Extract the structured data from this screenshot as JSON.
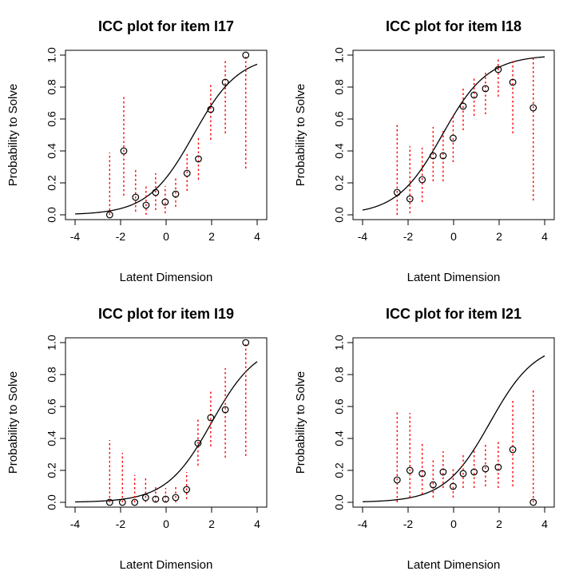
{
  "chart_data": [
    {
      "type": "scatter",
      "title": "ICC plot for item  I17",
      "xlabel": "Latent Dimension",
      "ylabel": "Probability to Solve",
      "xlim": [
        -4,
        4
      ],
      "ylim": [
        0,
        1
      ],
      "xticks": [
        "-4",
        "-2",
        "0",
        "2",
        "4"
      ],
      "yticks": [
        "0.0",
        "0.2",
        "0.4",
        "0.6",
        "0.8",
        "1.0"
      ],
      "curve": {
        "difficulty": 1.2,
        "range": [
          -4,
          4
        ]
      },
      "points": [
        {
          "x": -2.48,
          "y": 0.0,
          "lo": 0.0,
          "hi": 0.39
        },
        {
          "x": -1.86,
          "y": 0.4,
          "lo": 0.12,
          "hi": 0.74
        },
        {
          "x": -1.34,
          "y": 0.11,
          "lo": 0.02,
          "hi": 0.28
        },
        {
          "x": -0.88,
          "y": 0.06,
          "lo": 0.0,
          "hi": 0.19
        },
        {
          "x": -0.46,
          "y": 0.14,
          "lo": 0.03,
          "hi": 0.26
        },
        {
          "x": -0.04,
          "y": 0.08,
          "lo": 0.01,
          "hi": 0.18
        },
        {
          "x": 0.42,
          "y": 0.13,
          "lo": 0.05,
          "hi": 0.24
        },
        {
          "x": 0.92,
          "y": 0.26,
          "lo": 0.15,
          "hi": 0.38
        },
        {
          "x": 1.42,
          "y": 0.35,
          "lo": 0.22,
          "hi": 0.49
        },
        {
          "x": 1.96,
          "y": 0.66,
          "lo": 0.47,
          "hi": 0.82
        },
        {
          "x": 2.6,
          "y": 0.83,
          "lo": 0.51,
          "hi": 0.97
        },
        {
          "x": 3.5,
          "y": 1.0,
          "lo": 0.29,
          "hi": 1.0
        }
      ]
    },
    {
      "type": "scatter",
      "title": "ICC plot for item  I18",
      "xlabel": "Latent Dimension",
      "ylabel": "Probability to Solve",
      "xlim": [
        -4,
        4
      ],
      "ylim": [
        0,
        1
      ],
      "xticks": [
        "-4",
        "-2",
        "0",
        "2",
        "4"
      ],
      "yticks": [
        "0.0",
        "0.2",
        "0.4",
        "0.6",
        "0.8",
        "1.0"
      ],
      "curve": {
        "difficulty": -0.5,
        "range": [
          -4,
          4
        ]
      },
      "points": [
        {
          "x": -2.48,
          "y": 0.14,
          "lo": 0.0,
          "hi": 0.57
        },
        {
          "x": -1.92,
          "y": 0.1,
          "lo": 0.01,
          "hi": 0.43
        },
        {
          "x": -1.38,
          "y": 0.22,
          "lo": 0.08,
          "hi": 0.42
        },
        {
          "x": -0.9,
          "y": 0.37,
          "lo": 0.21,
          "hi": 0.55
        },
        {
          "x": -0.46,
          "y": 0.37,
          "lo": 0.21,
          "hi": 0.53
        },
        {
          "x": -0.02,
          "y": 0.48,
          "lo": 0.33,
          "hi": 0.63
        },
        {
          "x": 0.42,
          "y": 0.68,
          "lo": 0.53,
          "hi": 0.8
        },
        {
          "x": 0.9,
          "y": 0.75,
          "lo": 0.62,
          "hi": 0.86
        },
        {
          "x": 1.4,
          "y": 0.79,
          "lo": 0.63,
          "hi": 0.9
        },
        {
          "x": 1.96,
          "y": 0.91,
          "lo": 0.74,
          "hi": 0.98
        },
        {
          "x": 2.6,
          "y": 0.83,
          "lo": 0.51,
          "hi": 0.97
        },
        {
          "x": 3.5,
          "y": 0.67,
          "lo": 0.09,
          "hi": 0.99
        }
      ]
    },
    {
      "type": "scatter",
      "title": "ICC plot for item  I19",
      "xlabel": "Latent Dimension",
      "ylabel": "Probability to Solve",
      "xlim": [
        -4,
        4
      ],
      "ylim": [
        0,
        1
      ],
      "xticks": [
        "-4",
        "-2",
        "0",
        "2",
        "4"
      ],
      "yticks": [
        "0.0",
        "0.2",
        "0.4",
        "0.6",
        "0.8",
        "1.0"
      ],
      "curve": {
        "difficulty": 2.0,
        "range": [
          -4,
          4
        ]
      },
      "points": [
        {
          "x": -2.48,
          "y": 0.0,
          "lo": 0.0,
          "hi": 0.39
        },
        {
          "x": -1.92,
          "y": 0.0,
          "lo": 0.0,
          "hi": 0.31
        },
        {
          "x": -1.38,
          "y": 0.0,
          "lo": 0.0,
          "hi": 0.17
        },
        {
          "x": -0.9,
          "y": 0.03,
          "lo": 0.0,
          "hi": 0.15
        },
        {
          "x": -0.46,
          "y": 0.02,
          "lo": 0.0,
          "hi": 0.11
        },
        {
          "x": -0.02,
          "y": 0.02,
          "lo": 0.0,
          "hi": 0.09
        },
        {
          "x": 0.42,
          "y": 0.03,
          "lo": 0.0,
          "hi": 0.11
        },
        {
          "x": 0.9,
          "y": 0.08,
          "lo": 0.02,
          "hi": 0.19
        },
        {
          "x": 1.4,
          "y": 0.37,
          "lo": 0.23,
          "hi": 0.52
        },
        {
          "x": 1.96,
          "y": 0.53,
          "lo": 0.35,
          "hi": 0.7
        },
        {
          "x": 2.6,
          "y": 0.58,
          "lo": 0.28,
          "hi": 0.84
        },
        {
          "x": 3.5,
          "y": 1.0,
          "lo": 0.29,
          "hi": 1.0
        }
      ]
    },
    {
      "type": "scatter",
      "title": "ICC plot for item  I21",
      "xlabel": "Latent Dimension",
      "ylabel": "Probability to Solve",
      "xlim": [
        -4,
        4
      ],
      "ylim": [
        0,
        1
      ],
      "xticks": [
        "-4",
        "-2",
        "0",
        "2",
        "4"
      ],
      "yticks": [
        "0.0",
        "0.2",
        "0.4",
        "0.6",
        "0.8",
        "1.0"
      ],
      "curve": {
        "difficulty": 1.6,
        "range": [
          -4,
          4
        ]
      },
      "points": [
        {
          "x": -2.48,
          "y": 0.14,
          "lo": 0.0,
          "hi": 0.57
        },
        {
          "x": -1.92,
          "y": 0.2,
          "lo": 0.03,
          "hi": 0.56
        },
        {
          "x": -1.38,
          "y": 0.18,
          "lo": 0.05,
          "hi": 0.38
        },
        {
          "x": -0.9,
          "y": 0.11,
          "lo": 0.03,
          "hi": 0.27
        },
        {
          "x": -0.46,
          "y": 0.19,
          "lo": 0.09,
          "hi": 0.32
        },
        {
          "x": -0.02,
          "y": 0.1,
          "lo": 0.03,
          "hi": 0.21
        },
        {
          "x": 0.42,
          "y": 0.18,
          "lo": 0.09,
          "hi": 0.31
        },
        {
          "x": 0.9,
          "y": 0.19,
          "lo": 0.09,
          "hi": 0.33
        },
        {
          "x": 1.4,
          "y": 0.21,
          "lo": 0.1,
          "hi": 0.37
        },
        {
          "x": 1.96,
          "y": 0.22,
          "lo": 0.09,
          "hi": 0.38
        },
        {
          "x": 2.6,
          "y": 0.33,
          "lo": 0.1,
          "hi": 0.65
        },
        {
          "x": 3.5,
          "y": 0.0,
          "lo": 0.0,
          "hi": 0.7
        }
      ]
    }
  ]
}
